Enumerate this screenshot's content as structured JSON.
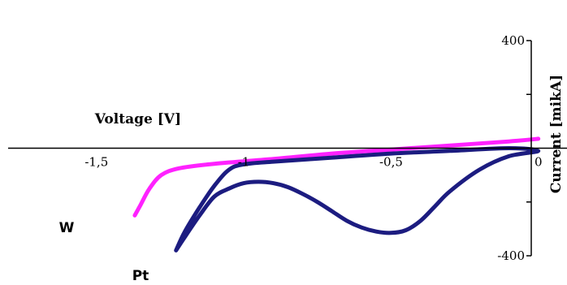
{
  "chart_data": {
    "type": "line",
    "xlabel": "Voltage [V]",
    "ylabel": "Current [mikA]",
    "xlim": [
      -1.8,
      0.02
    ],
    "ylim": [
      -400,
      400
    ],
    "x_ticks": [
      -1.5,
      -1,
      -0.5,
      0
    ],
    "x_tick_labels": [
      "-1,5",
      "-1",
      "-0,5",
      "0"
    ],
    "y_ticks": [
      400,
      200,
      0,
      -200,
      -400
    ],
    "y_tick_labels": [
      "400",
      "",
      "",
      "",
      "-400"
    ],
    "grid": false,
    "legend": "none",
    "annotations": [
      "W",
      "Pt"
    ],
    "series": [
      {
        "color": "#ff22ff",
        "x": [
          -1.37,
          -1.35,
          -1.32,
          -1.28,
          -1.22,
          -1.1,
          -0.9,
          -0.7,
          -0.5,
          -0.3,
          -0.1,
          0.0
        ],
        "y": [
          -250,
          -210,
          -150,
          -100,
          -75,
          -58,
          -40,
          -20,
          -5,
          10,
          25,
          35
        ]
      },
      {
        "color": "#1c1c80",
        "x": [
          -1.23,
          -1.2,
          -1.15,
          -1.1,
          -1.05,
          -1.0,
          -0.95,
          -0.9,
          -0.85,
          -0.8,
          -0.75,
          -0.7,
          -0.65,
          -0.6,
          -0.55,
          -0.5,
          -0.45,
          -0.4,
          -0.35,
          -0.3,
          -0.2,
          -0.1,
          0.0,
          -0.1,
          -0.3,
          -0.5,
          -0.7,
          -0.9,
          -1.0,
          -1.05,
          -1.1,
          -1.15,
          -1.2,
          -1.23
        ],
        "y": [
          -380,
          -330,
          -250,
          -180,
          -150,
          -130,
          -125,
          -130,
          -145,
          -170,
          -200,
          -235,
          -270,
          -295,
          -310,
          -315,
          -305,
          -270,
          -215,
          -160,
          -80,
          -30,
          -10,
          0,
          -10,
          -20,
          -35,
          -50,
          -60,
          -80,
          -140,
          -220,
          -310,
          -380
        ]
      }
    ]
  }
}
